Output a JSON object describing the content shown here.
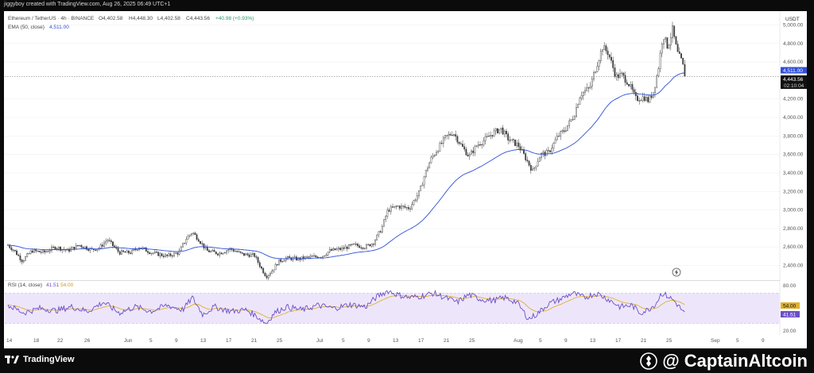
{
  "header": {
    "attribution": "jiggyboy created with TradingView.com, Aug 26, 2025 06:49 UTC+1",
    "symbol": "Ethereum / TetherUS · 4h · BINANCE",
    "open": "O4,402.58",
    "high": "H4,448.30",
    "low": "L4,402.58",
    "close": "C4,443.56",
    "change": "+40.98 (+0.93%)",
    "ema_label": "EMA (50, close)",
    "ema_value": "4,511.00",
    "rsi_label": "RSI (14, close)",
    "rsi_value": "41.51",
    "rsi_ma_value": "54.00"
  },
  "axis": {
    "currency": "USDT",
    "price_ticks": [
      "5,000.00",
      "4,800.00",
      "4,600.00",
      "4,200.00",
      "4,000.00",
      "3,800.00",
      "3,600.00",
      "3,400.00",
      "3,200.00",
      "3,000.00",
      "2,800.00",
      "2,600.00",
      "2,400.00"
    ],
    "rsi_ticks": [
      "80.00",
      "20.00"
    ],
    "time_ticks": [
      "14",
      "18",
      "22",
      "26",
      "Jun",
      "5",
      "9",
      "13",
      "17",
      "21",
      "25",
      "Jul",
      "5",
      "9",
      "13",
      "17",
      "21",
      "25",
      "Aug",
      "5",
      "9",
      "13",
      "17",
      "21",
      "25",
      "Sep",
      "5",
      "9"
    ]
  },
  "badges": {
    "ema_badge": "4,511.00",
    "price_badge": "4,443.56",
    "countdown": "02:10:04",
    "rsi_ma_badge": "54.00",
    "rsi_badge": "41.51"
  },
  "footer": {
    "tv_logo": "TradingView",
    "brand": "@ CaptainAltcoin"
  },
  "colors": {
    "up": "#444444",
    "down": "#444444",
    "ema": "#2f4fd8",
    "rsi": "#6a4fc8",
    "rsi_ma": "#e0b030",
    "badge_price": "#111111",
    "badge_ema": "#2f4fd8"
  },
  "chart_data": {
    "type": "candlestick",
    "ylim": [
      2250,
      5150
    ],
    "rsi_ylim": [
      15,
      85
    ],
    "ema_last": 4511.0,
    "last_close": 4443.56,
    "anchors": [
      [
        0,
        2620
      ],
      [
        8,
        2560
      ],
      [
        18,
        2450
      ],
      [
        30,
        2560
      ],
      [
        45,
        2540
      ],
      [
        60,
        2600
      ],
      [
        75,
        2560
      ],
      [
        90,
        2620
      ],
      [
        105,
        2570
      ],
      [
        115,
        2590
      ],
      [
        125,
        2680
      ],
      [
        140,
        2540
      ],
      [
        155,
        2540
      ],
      [
        165,
        2600
      ],
      [
        180,
        2540
      ],
      [
        200,
        2500
      ],
      [
        215,
        2540
      ],
      [
        225,
        2700
      ],
      [
        232,
        2760
      ],
      [
        240,
        2680
      ],
      [
        250,
        2560
      ],
      [
        265,
        2530
      ],
      [
        280,
        2580
      ],
      [
        295,
        2520
      ],
      [
        310,
        2510
      ],
      [
        318,
        2380
      ],
      [
        325,
        2280
      ],
      [
        333,
        2350
      ],
      [
        340,
        2440
      ],
      [
        350,
        2480
      ],
      [
        365,
        2470
      ],
      [
        380,
        2490
      ],
      [
        395,
        2500
      ],
      [
        405,
        2560
      ],
      [
        420,
        2580
      ],
      [
        435,
        2620
      ],
      [
        450,
        2600
      ],
      [
        460,
        2650
      ],
      [
        470,
        2800
      ],
      [
        478,
        3000
      ],
      [
        490,
        3040
      ],
      [
        505,
        3020
      ],
      [
        518,
        3200
      ],
      [
        525,
        3400
      ],
      [
        532,
        3550
      ],
      [
        540,
        3650
      ],
      [
        550,
        3780
      ],
      [
        560,
        3840
      ],
      [
        570,
        3700
      ],
      [
        580,
        3580
      ],
      [
        590,
        3700
      ],
      [
        600,
        3760
      ],
      [
        610,
        3830
      ],
      [
        620,
        3880
      ],
      [
        630,
        3760
      ],
      [
        642,
        3700
      ],
      [
        652,
        3550
      ],
      [
        660,
        3420
      ],
      [
        670,
        3600
      ],
      [
        680,
        3620
      ],
      [
        692,
        3800
      ],
      [
        700,
        3860
      ],
      [
        712,
        4020
      ],
      [
        720,
        4250
      ],
      [
        732,
        4320
      ],
      [
        740,
        4550
      ],
      [
        748,
        4760
      ],
      [
        755,
        4700
      ],
      [
        765,
        4440
      ],
      [
        772,
        4460
      ],
      [
        780,
        4380
      ],
      [
        790,
        4200
      ],
      [
        800,
        4220
      ],
      [
        806,
        4180
      ],
      [
        812,
        4280
      ],
      [
        818,
        4520
      ],
      [
        824,
        4900
      ],
      [
        830,
        4760
      ],
      [
        836,
        4950
      ],
      [
        842,
        4700
      ],
      [
        848,
        4600
      ],
      [
        852,
        4443.56
      ]
    ],
    "rsi_anchors": [
      [
        0,
        54
      ],
      [
        20,
        44
      ],
      [
        40,
        50
      ],
      [
        60,
        47
      ],
      [
        80,
        52
      ],
      [
        100,
        46
      ],
      [
        120,
        58
      ],
      [
        140,
        44
      ],
      [
        160,
        52
      ],
      [
        180,
        46
      ],
      [
        200,
        54
      ],
      [
        220,
        48
      ],
      [
        232,
        64
      ],
      [
        245,
        42
      ],
      [
        260,
        52
      ],
      [
        280,
        46
      ],
      [
        300,
        48
      ],
      [
        315,
        38
      ],
      [
        325,
        30
      ],
      [
        335,
        44
      ],
      [
        350,
        52
      ],
      [
        370,
        48
      ],
      [
        390,
        54
      ],
      [
        410,
        50
      ],
      [
        430,
        55
      ],
      [
        450,
        52
      ],
      [
        465,
        66
      ],
      [
        478,
        73
      ],
      [
        490,
        68
      ],
      [
        505,
        64
      ],
      [
        520,
        66
      ],
      [
        535,
        70
      ],
      [
        550,
        64
      ],
      [
        565,
        58
      ],
      [
        580,
        68
      ],
      [
        595,
        62
      ],
      [
        610,
        60
      ],
      [
        625,
        64
      ],
      [
        640,
        58
      ],
      [
        655,
        36
      ],
      [
        665,
        42
      ],
      [
        680,
        56
      ],
      [
        695,
        62
      ],
      [
        710,
        70
      ],
      [
        725,
        64
      ],
      [
        740,
        70
      ],
      [
        755,
        62
      ],
      [
        770,
        52
      ],
      [
        785,
        54
      ],
      [
        795,
        44
      ],
      [
        805,
        48
      ],
      [
        815,
        56
      ],
      [
        822,
        70
      ],
      [
        830,
        66
      ],
      [
        838,
        60
      ],
      [
        846,
        50
      ],
      [
        852,
        41.51
      ]
    ]
  }
}
